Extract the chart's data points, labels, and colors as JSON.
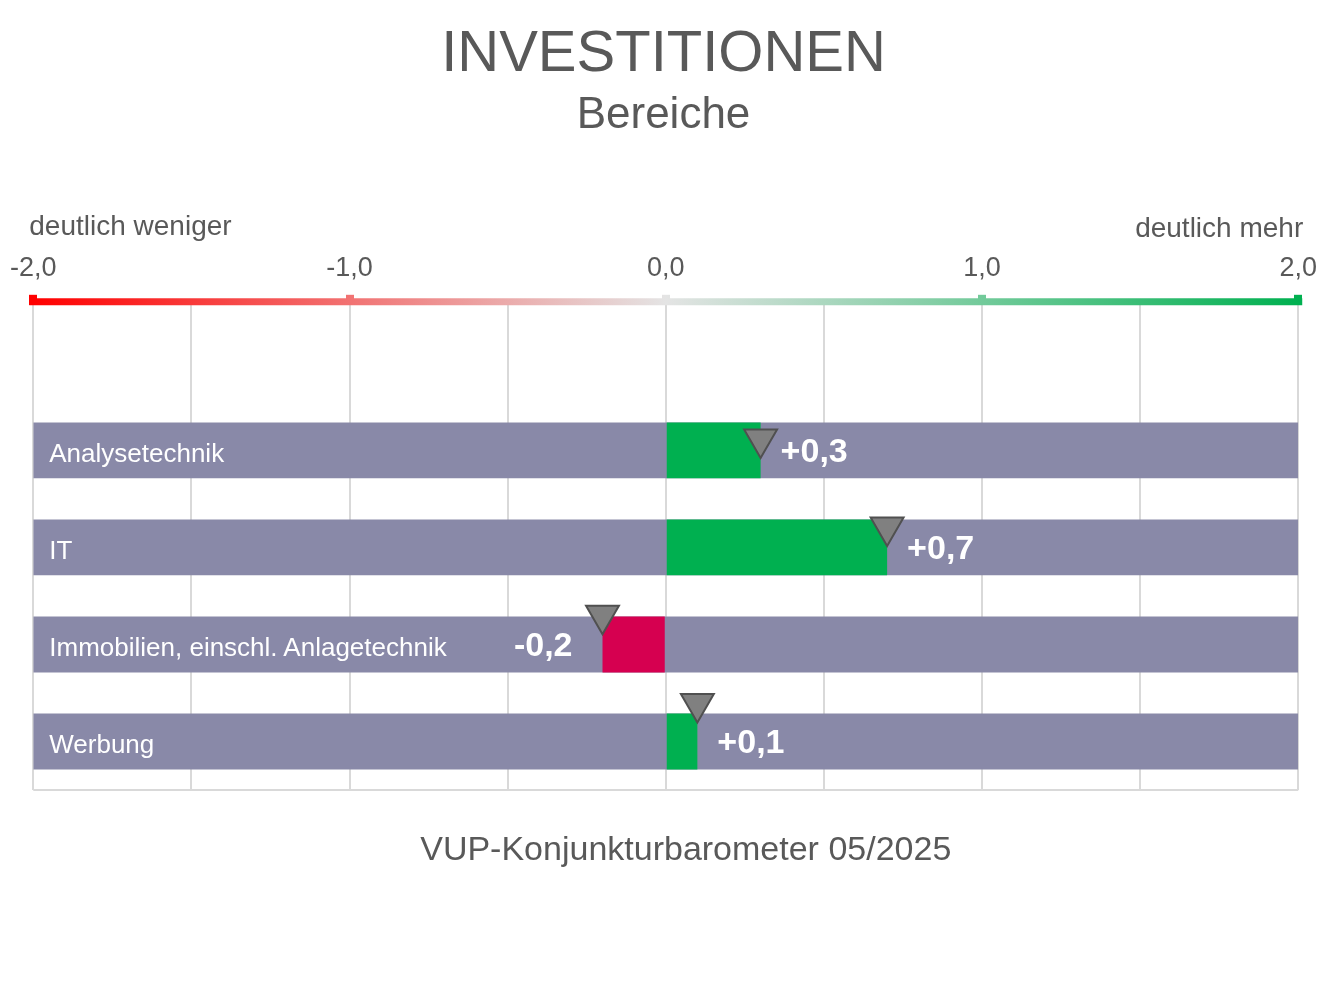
{
  "chart_data": {
    "type": "bar",
    "orientation": "horizontal",
    "title": "INVESTITIONEN",
    "subtitle": "Bereiche",
    "categories": [
      null,
      "Analysetechnik",
      "IT",
      "Immobilien, einschl. Anlagetechnik",
      "Werbung"
    ],
    "series": [
      {
        "type": "bar",
        "color": "#8989a8",
        "base": [
          null,
          -2,
          -2,
          -2,
          -2
        ],
        "values": [
          null,
          4,
          4,
          4,
          4
        ]
      },
      {
        "type": "bar",
        "colors": [
          null,
          "#00b050",
          "#00b050",
          "#d60050",
          "#00b050"
        ],
        "values": [
          null,
          0.3,
          0.7,
          -0.2,
          0.1
        ],
        "value_labels": [
          null,
          "+0,3",
          "+0,7",
          "-0,2",
          "+0,1"
        ]
      },
      {
        "type": "scatter",
        "color": "#808080",
        "marker": "triangle",
        "values": [
          null,
          0.3,
          0.7,
          -0.2,
          0.1
        ]
      }
    ],
    "xlim": [
      -2,
      2
    ],
    "xticks": [
      {
        "value": -2,
        "label": "-2,0"
      },
      {
        "value": -1.5,
        "label": null
      },
      {
        "value": -1,
        "label": "-1,0"
      },
      {
        "value": -0.5,
        "label": null
      },
      {
        "value": 0,
        "label": "0,0"
      },
      {
        "value": 0.5,
        "label": null
      },
      {
        "value": 1,
        "label": "1,0"
      },
      {
        "value": 1.5,
        "label": null
      },
      {
        "value": 2,
        "label": "2,0"
      }
    ],
    "grid": "x",
    "annotations": [
      "deutlich weniger",
      "deutlich mehr",
      "VUP-Konjunkturbarometer 05/2025"
    ]
  }
}
